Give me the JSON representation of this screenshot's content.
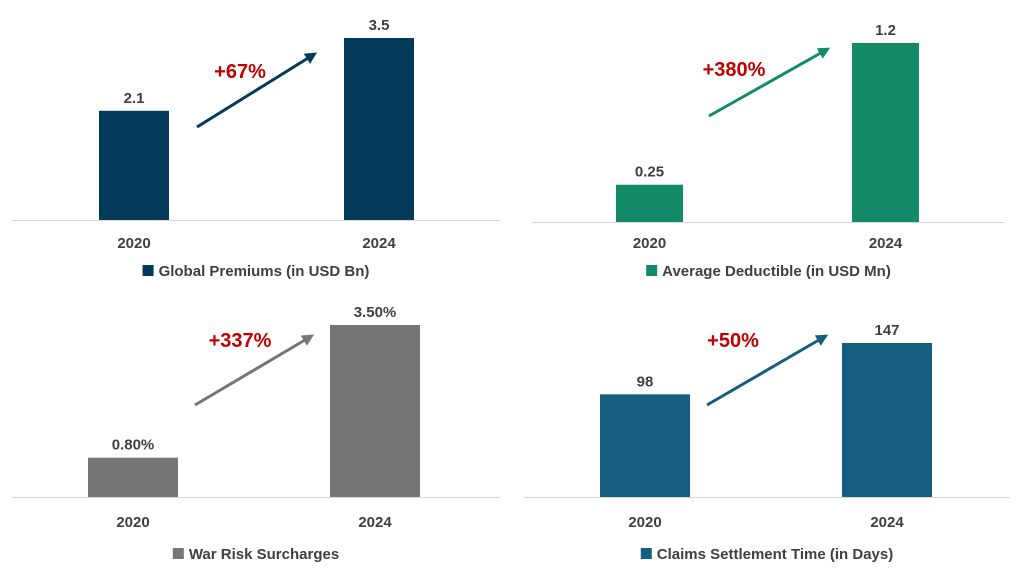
{
  "chart_data": [
    {
      "type": "bar",
      "title": "",
      "categories": [
        "2020",
        "2024"
      ],
      "series": [
        {
          "name": "Global Premiums (in USD Bn)",
          "values": [
            2.1,
            3.5
          ],
          "labels": [
            "2.1",
            "3.5"
          ]
        }
      ],
      "annotation": "+67%",
      "color": "#033a5a",
      "ylim": [
        0,
        3.5
      ],
      "legend": "bottom"
    },
    {
      "type": "bar",
      "title": "",
      "categories": [
        "2020",
        "2024"
      ],
      "series": [
        {
          "name": "Average Deductible (in USD Mn)",
          "values": [
            0.25,
            1.2
          ],
          "labels": [
            "0.25",
            "1.2"
          ]
        }
      ],
      "annotation": "+380%",
      "color": "#138a68",
      "ylim": [
        0,
        1.2
      ],
      "legend": "bottom"
    },
    {
      "type": "bar",
      "title": "",
      "categories": [
        "2020",
        "2024"
      ],
      "series": [
        {
          "name": "War Risk Surcharges",
          "values": [
            0.8,
            3.5
          ],
          "labels": [
            "0.80%",
            "3.50%"
          ]
        }
      ],
      "annotation": "+337%",
      "color": "#767676",
      "ylim": [
        0,
        3.5
      ],
      "legend": "bottom"
    },
    {
      "type": "bar",
      "title": "",
      "categories": [
        "2020",
        "2024"
      ],
      "series": [
        {
          "name": "Claims Settlement Time (in Days)",
          "values": [
            98,
            147
          ],
          "labels": [
            "98",
            "147"
          ]
        }
      ],
      "annotation": "+50%",
      "color": "#175d80",
      "ylim": [
        0,
        147
      ],
      "legend": "bottom"
    }
  ],
  "colors": {
    "annotation": "#c00000",
    "text": "#404040",
    "axis": "#d9d9d9"
  }
}
